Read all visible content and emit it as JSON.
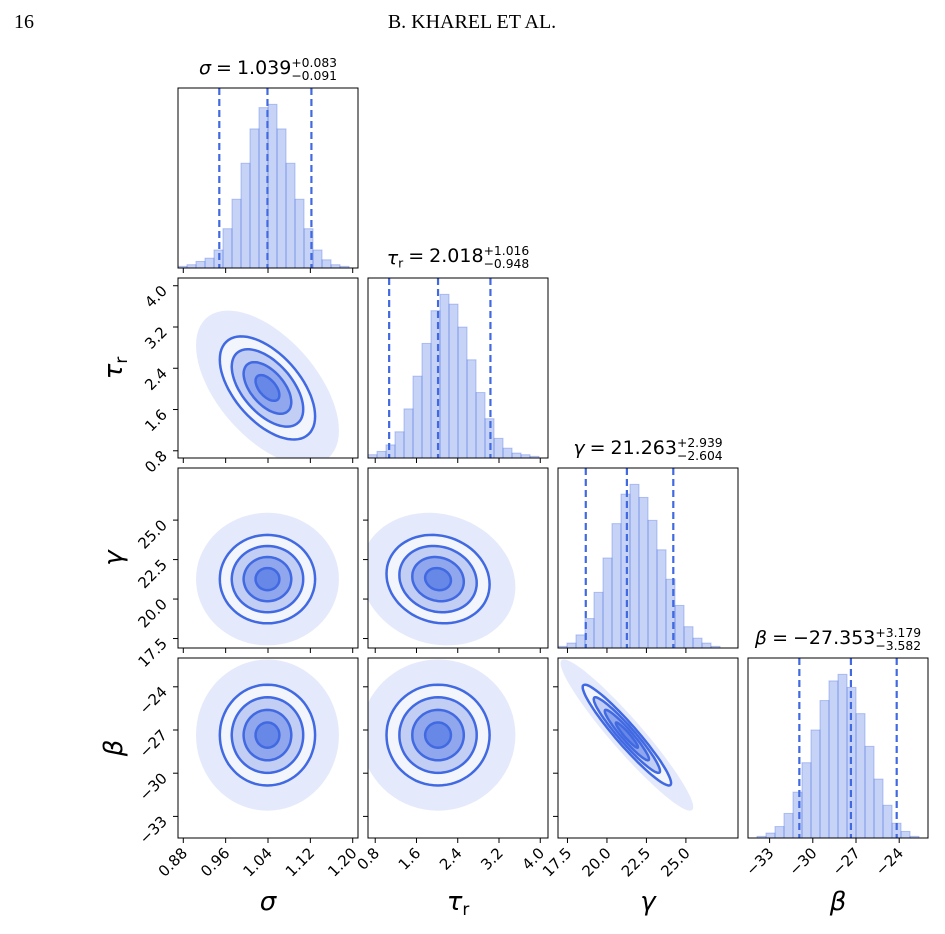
{
  "header": {
    "page": "16",
    "authors": "B. KHAREL ET AL."
  },
  "chart_data": {
    "type": "corner",
    "color": "#4169e1",
    "title_sep": "=",
    "hist_ylim": [
      0,
      110
    ],
    "levels": [
      0.5,
      1,
      1.5,
      2
    ],
    "params": [
      {
        "label": "σ",
        "median": 1.039,
        "plus": {
          "value": 0.083,
          "label": "+0.083"
        },
        "minus": {
          "value": 0.091,
          "label": "−0.091"
        },
        "sd": 0.045,
        "lim": [
          0.87,
          1.21
        ],
        "ticks": [
          0.88,
          0.96,
          1.04,
          1.12,
          {
            "value": 1.2,
            "label": "1.20"
          }
        ],
        "bins": [
          0.87,
          0.887,
          0.904,
          0.921,
          0.938,
          0.955,
          0.972,
          0.989,
          1.006,
          1.023,
          1.04,
          1.057,
          1.074,
          1.091,
          1.108,
          1.125,
          1.142,
          1.159,
          1.176,
          1.193,
          1.21
        ],
        "counts": [
          1,
          2,
          4,
          6,
          11,
          24,
          42,
          64,
          85,
          98,
          100,
          85,
          64,
          42,
          24,
          11,
          5,
          2,
          1,
          0
        ]
      },
      {
        "label": "τ",
        "label_sub": "r",
        "median": 2.018,
        "plus": {
          "value": 1.016,
          "label": "+1.016"
        },
        "minus": {
          "value": 0.948,
          "label": "−0.948"
        },
        "sd": 0.5,
        "lim": [
          0.66,
          4.15
        ],
        "ticks": [
          0.8,
          1.6,
          2.4,
          3.2,
          {
            "value": 4.0,
            "label": "4.0"
          }
        ],
        "bins": [
          0.66,
          0.8345,
          1.009,
          1.1835,
          1.358,
          1.5325,
          1.707,
          1.8815,
          2.056,
          2.2305,
          2.405,
          2.5795,
          2.754,
          2.9285,
          3.103,
          3.2775,
          3.452,
          3.6265,
          3.801,
          3.9755,
          4.15
        ],
        "counts": [
          2,
          4,
          8,
          16,
          30,
          50,
          70,
          90,
          100,
          94,
          80,
          60,
          40,
          24,
          12,
          6,
          3,
          2,
          1,
          0
        ]
      },
      {
        "label": "γ",
        "median": 21.263,
        "plus": {
          "value": 2.939,
          "label": "+2.939"
        },
        "minus": {
          "value": 2.604,
          "label": "−2.604"
        },
        "sd": 1.4,
        "lim": [
          16.9,
          28.3
        ],
        "ticks": [
          17.5,
          {
            "value": 20.0,
            "label": "20.0"
          },
          22.5,
          {
            "value": 25.0,
            "label": "25.0"
          }
        ],
        "bins": [
          16.9,
          17.47,
          18.04,
          18.61,
          19.18,
          19.75,
          20.32,
          20.89,
          21.46,
          22.03,
          22.6,
          23.17,
          23.74,
          24.31,
          24.88,
          25.45,
          26.02,
          26.59,
          27.16,
          27.73,
          28.3
        ],
        "counts": [
          1,
          3,
          8,
          18,
          34,
          55,
          76,
          94,
          100,
          92,
          78,
          60,
          42,
          26,
          13,
          6,
          3,
          1,
          0,
          0
        ]
      },
      {
        "label": "β",
        "median": {
          "value": -27.353,
          "label": "−27.353"
        },
        "plus": {
          "value": 3.179,
          "label": "+3.179"
        },
        "minus": {
          "value": 3.582,
          "label": "−3.582"
        },
        "sd": 1.75,
        "lim": [
          -34.5,
          -22.0
        ],
        "ticks": [
          {
            "value": -33,
            "label": "−33"
          },
          {
            "value": -30,
            "label": "−30"
          },
          {
            "value": -27,
            "label": "−27"
          },
          {
            "value": -24,
            "label": "−24"
          }
        ],
        "bins": [
          -34.5,
          -33.875,
          -33.25,
          -32.625,
          -32,
          -31.375,
          -30.75,
          -30.125,
          -29.5,
          -28.875,
          -28.25,
          -27.625,
          -27,
          -26.375,
          -25.75,
          -25.125,
          -24.5,
          -23.875,
          -23.25,
          -22.625,
          -22
        ],
        "counts": [
          0,
          1,
          3,
          7,
          15,
          28,
          46,
          66,
          84,
          96,
          100,
          92,
          76,
          56,
          36,
          20,
          9,
          4,
          1,
          0
        ]
      }
    ],
    "pairs": [
      {
        "corr": -0.55
      },
      {
        "corr": 0.0
      },
      {
        "corr": -0.12
      },
      {
        "corr": 0.0
      },
      {
        "corr": 0.0
      },
      {
        "corr": -0.95
      }
    ]
  }
}
